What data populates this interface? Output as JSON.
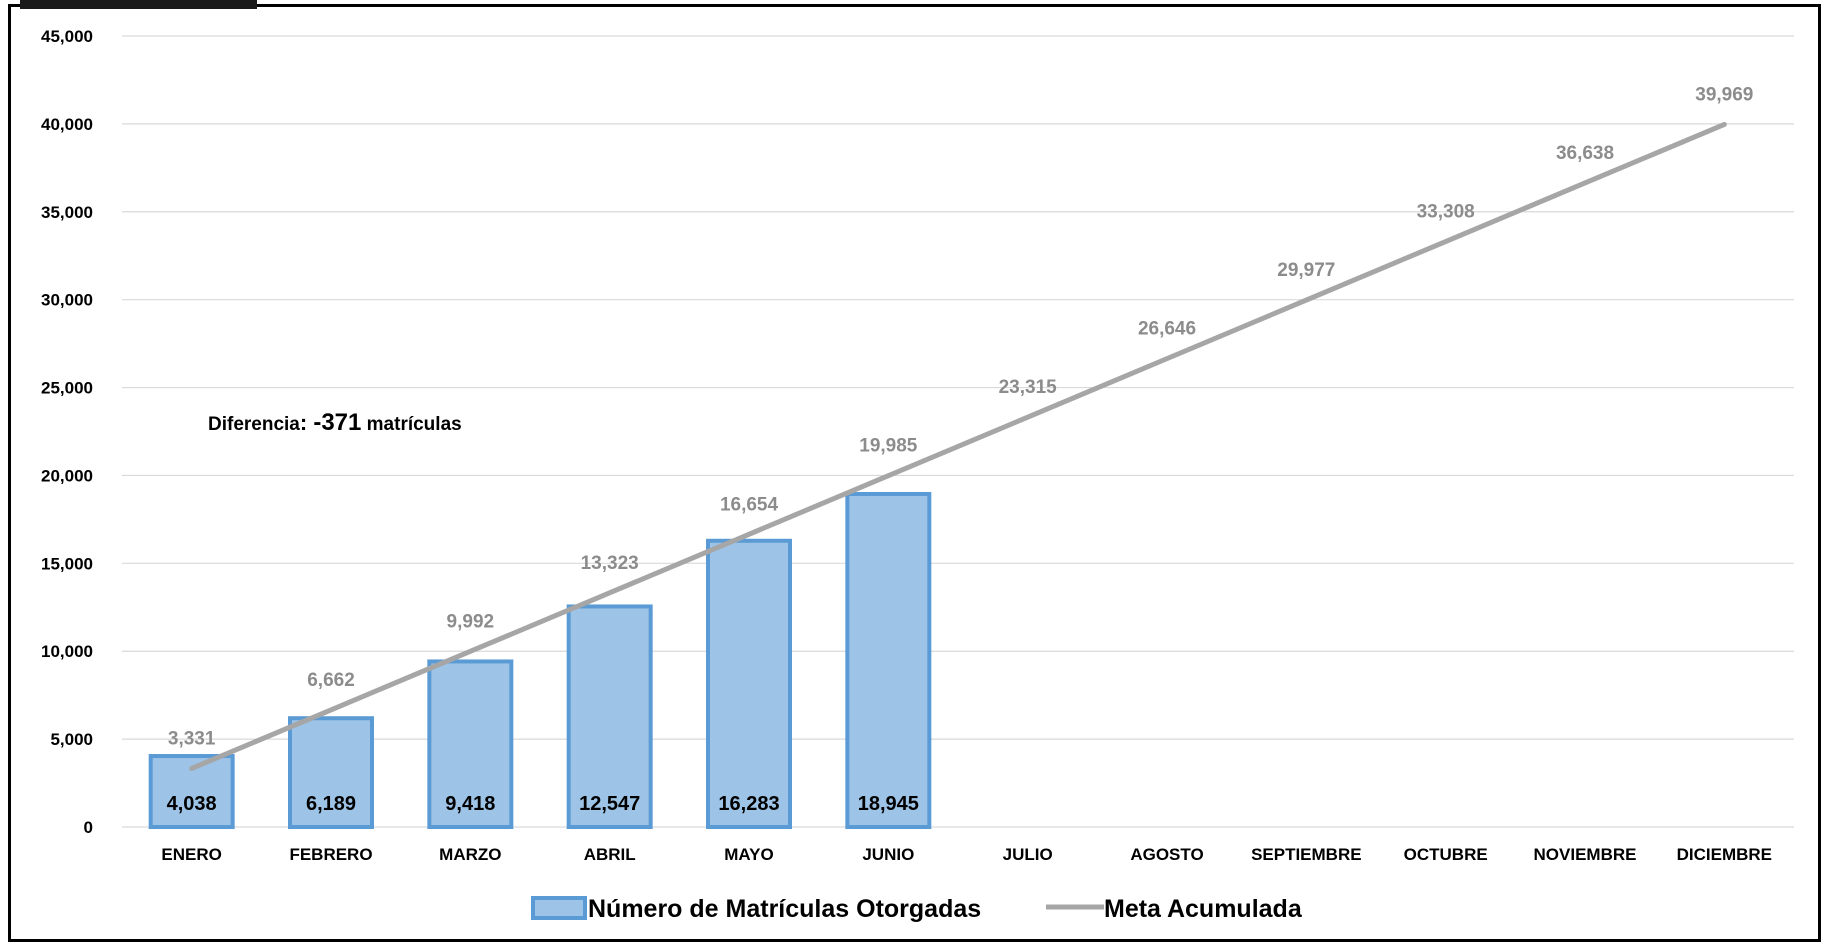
{
  "colors": {
    "bar_fill": "#9dc3e6",
    "bar_stroke": "#5b9bd5",
    "line": "#a6a6a6",
    "meta_label": "#8c8c8c",
    "grid": "#d9d9d9"
  },
  "annotation": {
    "prefix": "Diferencia",
    "colon": ": ",
    "value": "-371",
    "suffix": " matrículas"
  },
  "legend": {
    "bar_label": "Número de Matrículas Otorgadas",
    "line_label": "Meta Acumulada"
  },
  "chart_data": {
    "type": "bar",
    "categories": [
      "ENERO",
      "FEBRERO",
      "MARZO",
      "ABRIL",
      "MAYO",
      "JUNIO",
      "JULIO",
      "AGOSTO",
      "SEPTIEMBRE",
      "OCTUBRE",
      "NOVIEMBRE",
      "DICIEMBRE"
    ],
    "ylim": [
      0,
      45000
    ],
    "yticks": [
      0,
      5000,
      10000,
      15000,
      20000,
      25000,
      30000,
      35000,
      40000,
      45000
    ],
    "ytick_labels": [
      "0",
      "5,000",
      "10,000",
      "15,000",
      "20,000",
      "25,000",
      "30,000",
      "35,000",
      "40,000",
      "45,000"
    ],
    "grid": true,
    "legend_position": "bottom",
    "series": [
      {
        "name": "Número de Matrículas Otorgadas",
        "type": "bar",
        "values": [
          4038,
          6189,
          9418,
          12547,
          16283,
          18945,
          null,
          null,
          null,
          null,
          null,
          null
        ],
        "labels": [
          "4,038",
          "6,189",
          "9,418",
          "12,547",
          "16,283",
          "18,945"
        ]
      },
      {
        "name": "Meta Acumulada",
        "type": "line",
        "values": [
          3331,
          6662,
          9992,
          13323,
          16654,
          19985,
          23315,
          26646,
          29977,
          33308,
          36638,
          39969
        ],
        "labels": [
          "3,331",
          "6,662",
          "9,992",
          "13,323",
          "16,654",
          "19,985",
          "23,315",
          "26,646",
          "29,977",
          "33,308",
          "36,638",
          "39,969"
        ]
      }
    ]
  }
}
